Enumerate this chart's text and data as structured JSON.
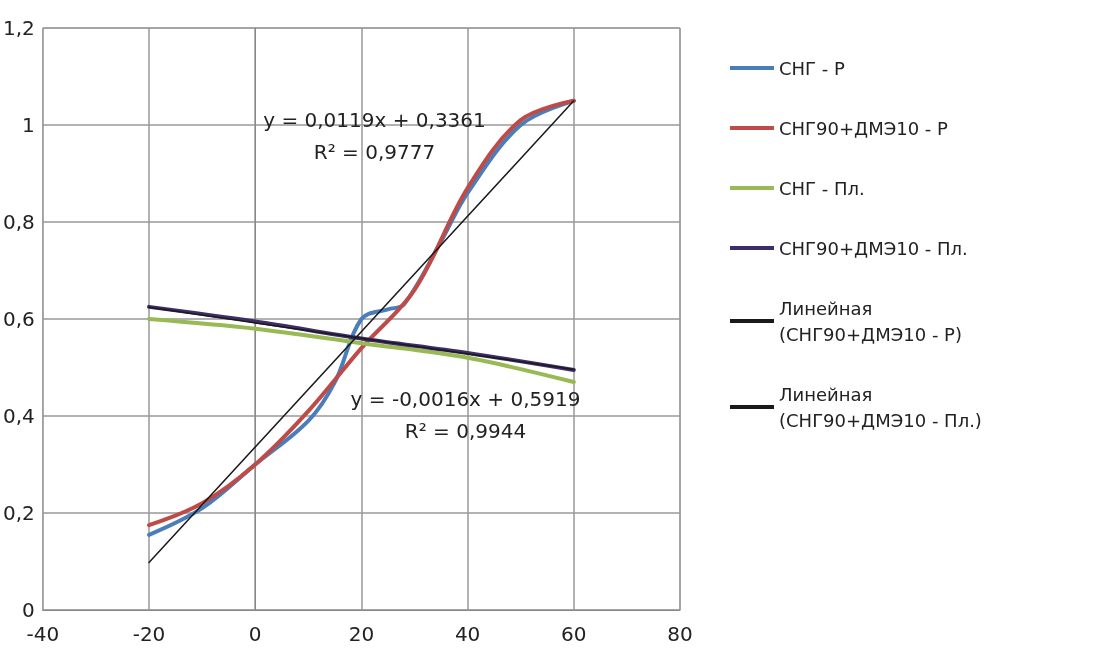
{
  "chart_data": {
    "type": "line",
    "xlim": [
      -40,
      80
    ],
    "xticks": [
      -40,
      -20,
      0,
      20,
      40,
      60,
      80
    ],
    "ylim": [
      0,
      1.2
    ],
    "yticks": [
      0,
      {
        "value": 0.2,
        "label": "0,2"
      },
      {
        "value": 0.4,
        "label": "0,4"
      },
      {
        "value": 0.6,
        "label": "0,6"
      },
      {
        "value": 0.8,
        "label": "0,8"
      },
      1,
      {
        "value": 1.2,
        "label": "1,2"
      }
    ],
    "grid": true,
    "legend": "right",
    "marker": "none",
    "line_style": "solid",
    "series": [
      {
        "name": "СНГ - Р",
        "color": "#4a7ebb",
        "x": [
          -20,
          -10,
          0,
          10,
          15,
          20,
          25,
          28,
          35,
          40,
          50,
          60
        ],
        "values": [
          0.155,
          0.21,
          0.3,
          0.39,
          0.47,
          0.6,
          0.62,
          0.63,
          0.76,
          0.86,
          1.0,
          1.05
        ]
      },
      {
        "name": "СНГ90+ДМЭ10 - Р",
        "color": "#be4b48",
        "x": [
          -20,
          -10,
          0,
          10,
          20,
          30,
          40,
          50,
          60
        ],
        "values": [
          0.175,
          0.22,
          0.3,
          0.41,
          0.54,
          0.66,
          0.87,
          1.01,
          1.05
        ]
      },
      {
        "name": "СНГ - Пл.",
        "color": "#98b954",
        "x": [
          -20,
          0,
          20,
          40,
          60
        ],
        "values": [
          0.6,
          0.58,
          0.55,
          0.52,
          0.47
        ]
      },
      {
        "name": "СНГ90+ДМЭ10 - Пл.",
        "color": "#3f2d6b",
        "x": [
          -20,
          0,
          20,
          40,
          60
        ],
        "values": [
          0.625,
          0.595,
          0.56,
          0.53,
          0.495
        ]
      },
      {
        "name": "Линейная (СНГ90+ДМЭ10 - Р)",
        "color": "#1a1a1a",
        "type": "line",
        "x": [
          -20,
          60
        ],
        "values": [
          0.098,
          1.05
        ]
      },
      {
        "name": "Линейная (СНГ90+ДМЭ10 - Пл.)",
        "color": "#1a1a1a",
        "type": "line",
        "x": [
          -20,
          60
        ],
        "values": [
          0.624,
          0.496
        ]
      }
    ],
    "annotations": [
      "y = 0,0119x + 0,3361\nR² = 0,9777",
      "y = -0,0016x + 0,5919\nR² = 0,9944"
    ]
  }
}
